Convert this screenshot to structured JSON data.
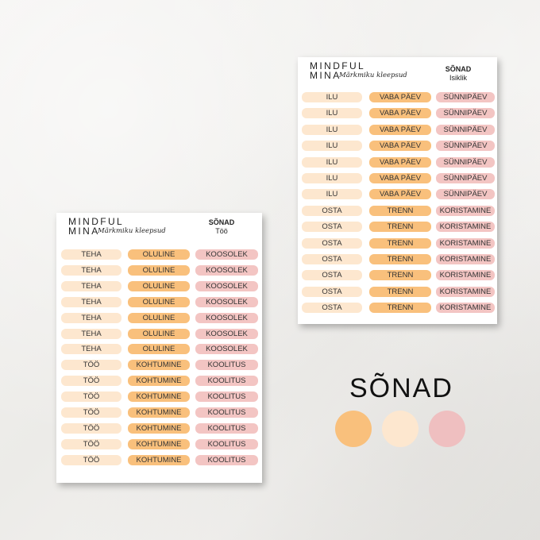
{
  "left_sheet": {
    "brand_line1": "MINDFUL",
    "brand_line2": "MINA",
    "brand_script": "Märkmiku kleepsud",
    "title": "SÕNAD",
    "subtitle": "Töö",
    "rows": [
      [
        "TEHA",
        "OLULINE",
        "KOOSOLEK"
      ],
      [
        "TEHA",
        "OLULINE",
        "KOOSOLEK"
      ],
      [
        "TEHA",
        "OLULINE",
        "KOOSOLEK"
      ],
      [
        "TEHA",
        "OLULINE",
        "KOOSOLEK"
      ],
      [
        "TEHA",
        "OLULINE",
        "KOOSOLEK"
      ],
      [
        "TEHA",
        "OLULINE",
        "KOOSOLEK"
      ],
      [
        "TEHA",
        "OLULINE",
        "KOOSOLEK"
      ],
      [
        "TÖÖ",
        "KOHTUMINE",
        "KOOLITUS"
      ],
      [
        "TÖÖ",
        "KOHTUMINE",
        "KOOLITUS"
      ],
      [
        "TÖÖ",
        "KOHTUMINE",
        "KOOLITUS"
      ],
      [
        "TÖÖ",
        "KOHTUMINE",
        "KOOLITUS"
      ],
      [
        "TÖÖ",
        "KOHTUMINE",
        "KOOLITUS"
      ],
      [
        "TÖÖ",
        "KOHTUMINE",
        "KOOLITUS"
      ],
      [
        "TÖÖ",
        "KOHTUMINE",
        "KOOLITUS"
      ]
    ]
  },
  "right_sheet": {
    "brand_line1": "MINDFUL",
    "brand_line2": "MINA",
    "brand_script": "Märkmiku kleepsud",
    "title": "SÕNAD",
    "subtitle": "Isiklik",
    "rows": [
      [
        "ILU",
        "VABA PÄEV",
        "SÜNNIPÄEV"
      ],
      [
        "ILU",
        "VABA PÄEV",
        "SÜNNIPÄEV"
      ],
      [
        "ILU",
        "VABA PÄEV",
        "SÜNNIPÄEV"
      ],
      [
        "ILU",
        "VABA PÄEV",
        "SÜNNIPÄEV"
      ],
      [
        "ILU",
        "VABA PÄEV",
        "SÜNNIPÄEV"
      ],
      [
        "ILU",
        "VABA PÄEV",
        "SÜNNIPÄEV"
      ],
      [
        "ILU",
        "VABA PÄEV",
        "SÜNNIPÄEV"
      ],
      [
        "OSTA",
        "TRENN",
        "KORISTAMINE"
      ],
      [
        "OSTA",
        "TRENN",
        "KORISTAMINE"
      ],
      [
        "OSTA",
        "TRENN",
        "KORISTAMINE"
      ],
      [
        "OSTA",
        "TRENN",
        "KORISTAMINE"
      ],
      [
        "OSTA",
        "TRENN",
        "KORISTAMINE"
      ],
      [
        "OSTA",
        "TRENN",
        "KORISTAMINE"
      ],
      [
        "OSTA",
        "TRENN",
        "KORISTAMINE"
      ]
    ]
  },
  "heading": "SÕNAD",
  "swatches": [
    "#f9c07c",
    "#fde7cf",
    "#efbfc0"
  ],
  "column_colors": [
    "#fde7cf",
    "#f9c07c",
    "#f3c5c3"
  ]
}
